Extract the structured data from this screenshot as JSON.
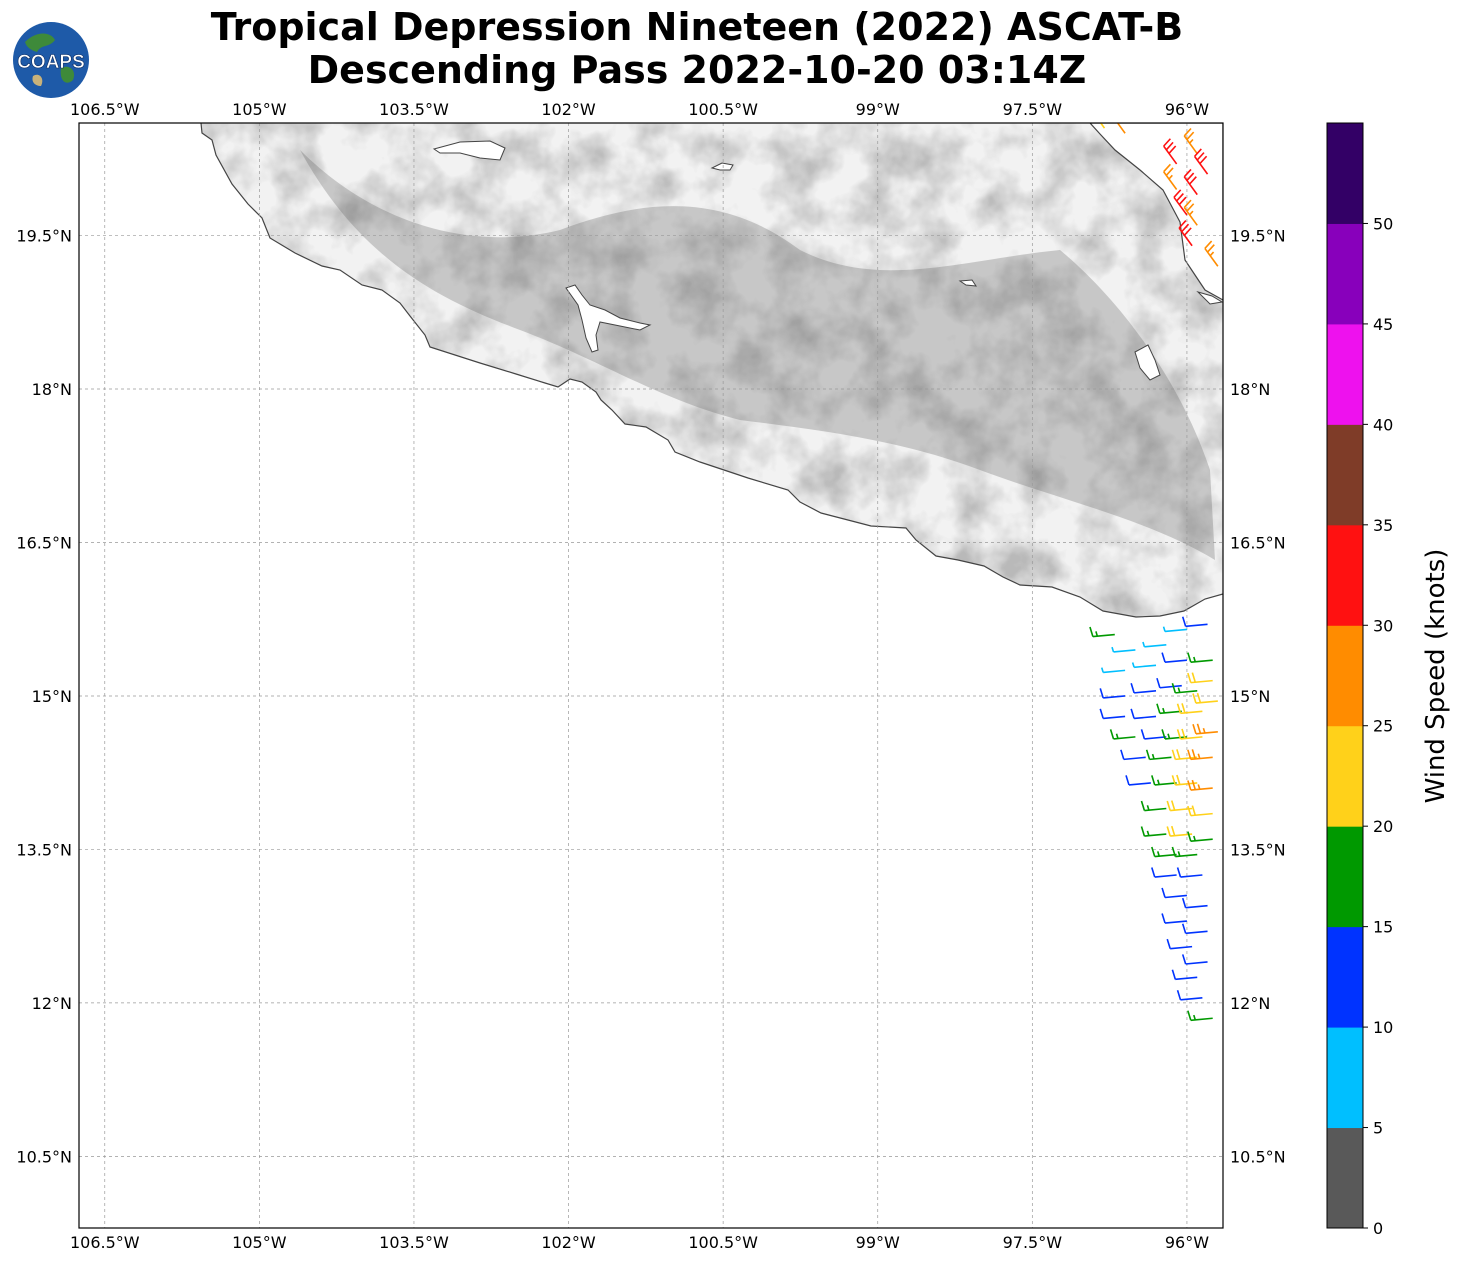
{
  "title": {
    "line1": "Tropical Depression Nineteen (2022) ASCAT-B",
    "line2": "Descending Pass 2022-10-20 03:14Z"
  },
  "logo": {
    "text": "COAPS",
    "icon": "globe-logo-icon"
  },
  "map": {
    "lon_range": [
      -106.75,
      -95.65
    ],
    "lat_range": [
      9.8,
      20.6
    ],
    "lon_ticks": [
      "106.5°W",
      "105°W",
      "103.5°W",
      "102°W",
      "100.5°W",
      "99°W",
      "97.5°W",
      "96°W"
    ],
    "lon_tick_values": [
      -106.5,
      -105,
      -103.5,
      -102,
      -100.5,
      -99,
      -97.5,
      -96
    ],
    "lat_ticks": [
      "19.5°N",
      "18°N",
      "16.5°N",
      "15°N",
      "13.5°N",
      "12°N",
      "10.5°N"
    ],
    "lat_tick_values": [
      19.5,
      18,
      16.5,
      15,
      13.5,
      12,
      10.5
    ],
    "grid": true,
    "land_shading": "grayscale elevation"
  },
  "colorbar": {
    "label": "Wind Speed (knots)",
    "ticks": [
      "0",
      "5",
      "10",
      "15",
      "20",
      "25",
      "30",
      "35",
      "40",
      "45",
      "50"
    ],
    "bins": [
      {
        "range": [
          0,
          5
        ],
        "color": "#595959"
      },
      {
        "range": [
          5,
          10
        ],
        "color": "#00bfff"
      },
      {
        "range": [
          10,
          15
        ],
        "color": "#0033ff"
      },
      {
        "range": [
          15,
          20
        ],
        "color": "#009900"
      },
      {
        "range": [
          20,
          25
        ],
        "color": "#ffd11a"
      },
      {
        "range": [
          25,
          30
        ],
        "color": "#ff8c00"
      },
      {
        "range": [
          30,
          35
        ],
        "color": "#ff1111"
      },
      {
        "range": [
          35,
          40
        ],
        "color": "#7f3c28"
      },
      {
        "range": [
          40,
          45
        ],
        "color": "#ee11ee"
      },
      {
        "range": [
          45,
          50
        ],
        "color": "#8800bb"
      },
      {
        "range": [
          50,
          55
        ],
        "color": "#330066"
      }
    ]
  },
  "chart_data": {
    "type": "scatter",
    "title": "Tropical Depression Nineteen (2022) ASCAT-B Descending Pass 2022-10-20 03:14Z",
    "xlabel": "",
    "ylabel": "",
    "xlim": [
      -106.75,
      -95.65
    ],
    "ylim": [
      9.8,
      20.6
    ],
    "legend": "colorbar right",
    "series": [
      {
        "name": "wind barbs north",
        "points": [
          {
            "lon": -96.8,
            "lat": 20.55,
            "kt": 22
          },
          {
            "lon": -96.6,
            "lat": 20.5,
            "kt": 27
          },
          {
            "lon": -95.9,
            "lat": 20.6,
            "kt": 22
          },
          {
            "lon": -95.9,
            "lat": 20.3,
            "kt": 27
          },
          {
            "lon": -96.1,
            "lat": 20.2,
            "kt": 32
          },
          {
            "lon": -95.8,
            "lat": 20.1,
            "kt": 32
          },
          {
            "lon": -96.1,
            "lat": 19.95,
            "kt": 27
          },
          {
            "lon": -95.9,
            "lat": 19.9,
            "kt": 32
          },
          {
            "lon": -96.0,
            "lat": 19.7,
            "kt": 32
          },
          {
            "lon": -95.9,
            "lat": 19.6,
            "kt": 27
          },
          {
            "lon": -95.95,
            "lat": 19.4,
            "kt": 32
          },
          {
            "lon": -95.7,
            "lat": 19.2,
            "kt": 27
          }
        ]
      },
      {
        "name": "wind barbs south",
        "points": [
          {
            "lon": -96.7,
            "lat": 15.6,
            "kt": 17
          },
          {
            "lon": -96.5,
            "lat": 15.45,
            "kt": 8
          },
          {
            "lon": -96.2,
            "lat": 15.5,
            "kt": 8
          },
          {
            "lon": -96.0,
            "lat": 15.65,
            "kt": 8
          },
          {
            "lon": -95.8,
            "lat": 15.7,
            "kt": 12
          },
          {
            "lon": -96.6,
            "lat": 15.25,
            "kt": 8
          },
          {
            "lon": -96.3,
            "lat": 15.3,
            "kt": 8
          },
          {
            "lon": -96.0,
            "lat": 15.35,
            "kt": 12
          },
          {
            "lon": -95.75,
            "lat": 15.35,
            "kt": 17
          },
          {
            "lon": -96.6,
            "lat": 15.0,
            "kt": 12
          },
          {
            "lon": -96.3,
            "lat": 15.05,
            "kt": 12
          },
          {
            "lon": -96.05,
            "lat": 15.1,
            "kt": 12
          },
          {
            "lon": -95.9,
            "lat": 15.05,
            "kt": 17
          },
          {
            "lon": -95.75,
            "lat": 15.15,
            "kt": 22
          },
          {
            "lon": -96.6,
            "lat": 14.8,
            "kt": 12
          },
          {
            "lon": -96.3,
            "lat": 14.8,
            "kt": 12
          },
          {
            "lon": -96.05,
            "lat": 14.85,
            "kt": 17
          },
          {
            "lon": -95.85,
            "lat": 14.85,
            "kt": 22
          },
          {
            "lon": -95.7,
            "lat": 14.95,
            "kt": 22
          },
          {
            "lon": -96.5,
            "lat": 14.6,
            "kt": 17
          },
          {
            "lon": -96.2,
            "lat": 14.6,
            "kt": 12
          },
          {
            "lon": -96.0,
            "lat": 14.6,
            "kt": 17
          },
          {
            "lon": -95.85,
            "lat": 14.6,
            "kt": 22
          },
          {
            "lon": -95.7,
            "lat": 14.65,
            "kt": 27
          },
          {
            "lon": -96.4,
            "lat": 14.4,
            "kt": 12
          },
          {
            "lon": -96.15,
            "lat": 14.4,
            "kt": 17
          },
          {
            "lon": -95.9,
            "lat": 14.4,
            "kt": 22
          },
          {
            "lon": -95.75,
            "lat": 14.4,
            "kt": 27
          },
          {
            "lon": -96.35,
            "lat": 14.15,
            "kt": 12
          },
          {
            "lon": -96.1,
            "lat": 14.15,
            "kt": 17
          },
          {
            "lon": -95.9,
            "lat": 14.15,
            "kt": 22
          },
          {
            "lon": -95.75,
            "lat": 14.1,
            "kt": 27
          },
          {
            "lon": -96.2,
            "lat": 13.9,
            "kt": 17
          },
          {
            "lon": -95.95,
            "lat": 13.9,
            "kt": 22
          },
          {
            "lon": -95.75,
            "lat": 13.85,
            "kt": 22
          },
          {
            "lon": -96.2,
            "lat": 13.65,
            "kt": 17
          },
          {
            "lon": -95.95,
            "lat": 13.65,
            "kt": 22
          },
          {
            "lon": -95.75,
            "lat": 13.6,
            "kt": 17
          },
          {
            "lon": -96.1,
            "lat": 13.45,
            "kt": 17
          },
          {
            "lon": -95.9,
            "lat": 13.45,
            "kt": 17
          },
          {
            "lon": -96.1,
            "lat": 13.25,
            "kt": 12
          },
          {
            "lon": -95.85,
            "lat": 13.25,
            "kt": 12
          },
          {
            "lon": -96.0,
            "lat": 13.05,
            "kt": 12
          },
          {
            "lon": -95.8,
            "lat": 12.95,
            "kt": 12
          },
          {
            "lon": -96.0,
            "lat": 12.8,
            "kt": 12
          },
          {
            "lon": -95.8,
            "lat": 12.7,
            "kt": 12
          },
          {
            "lon": -95.95,
            "lat": 12.55,
            "kt": 12
          },
          {
            "lon": -95.8,
            "lat": 12.4,
            "kt": 12
          },
          {
            "lon": -95.9,
            "lat": 12.25,
            "kt": 12
          },
          {
            "lon": -95.85,
            "lat": 12.05,
            "kt": 12
          },
          {
            "lon": -95.75,
            "lat": 11.85,
            "kt": 17
          }
        ]
      }
    ]
  }
}
